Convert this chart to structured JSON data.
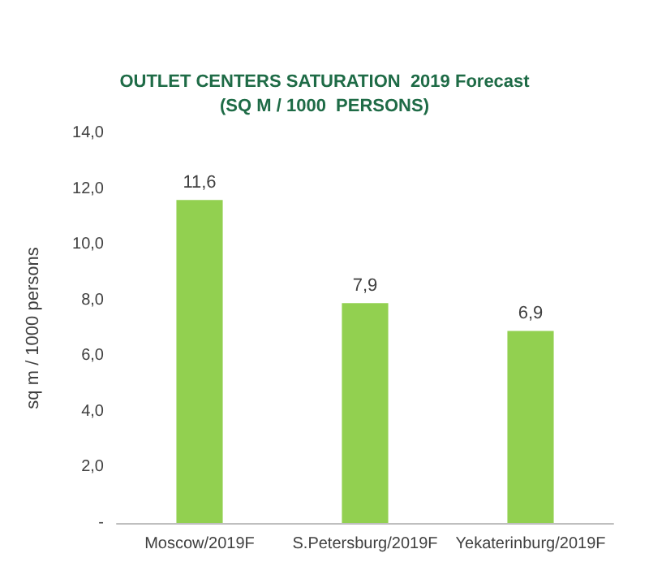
{
  "chart_data": {
    "type": "bar",
    "title": "OUTLET CENTERS SATURATION  2019 Forecast\n(SQ M / 1000  PERSONS)",
    "ylabel": "sq m / 1000 persons",
    "categories": [
      "Moscow/2019F",
      "S.Petersburg/2019F",
      "Yekaterinburg/2019F"
    ],
    "values": [
      11.6,
      7.9,
      6.9
    ],
    "color": "#92d050",
    "value_labels": [
      "11,6",
      "7,9",
      "6,9"
    ],
    "ylim": [
      0,
      14
    ],
    "yticks": [
      {
        "value": 0,
        "label": "-"
      },
      {
        "value": 2,
        "label": "2,0"
      },
      {
        "value": 4,
        "label": "4,0"
      },
      {
        "value": 6,
        "label": "6,0"
      },
      {
        "value": 8,
        "label": "8,0"
      },
      {
        "value": 10,
        "label": "10,0"
      },
      {
        "value": 12,
        "label": "12,0"
      },
      {
        "value": 14,
        "label": "14,0"
      }
    ],
    "line_style": "solid"
  }
}
